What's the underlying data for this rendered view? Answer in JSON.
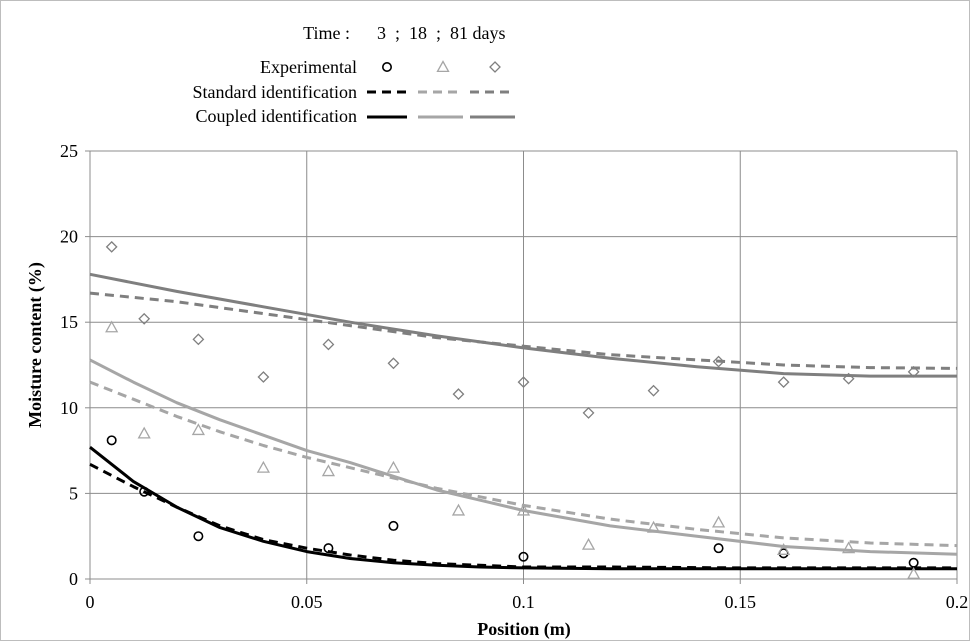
{
  "chart_data": {
    "type": "line",
    "xlabel": "Position (m)",
    "ylabel": "Moisture content (%)",
    "xlim": [
      0,
      0.2
    ],
    "ylim": [
      0,
      25
    ],
    "x_ticks": [
      "0",
      "0.05",
      "0.1",
      "0.15",
      "0.2"
    ],
    "y_ticks": [
      "0",
      "5",
      "10",
      "15",
      "20",
      "25"
    ],
    "grid": true,
    "legend": {
      "placement": "top-center",
      "time_label": "Time :",
      "time_values": "3  ;  18  ;  81 days",
      "rows": [
        "Experimental",
        "Standard identification",
        "Coupled identification"
      ]
    },
    "colors": {
      "day3": "#000000",
      "day18": "#a6a6a6",
      "day81": "#7f7f7f"
    },
    "series": [
      {
        "time": "3 days",
        "group": "experimental",
        "color": "#000000",
        "x": [
          0.005,
          0.0125,
          0.025,
          0.055,
          0.07,
          0.1,
          0.145,
          0.16,
          0.19
        ],
        "values": [
          8.1,
          5.1,
          2.5,
          1.8,
          3.1,
          1.3,
          1.8,
          1.5,
          0.95
        ]
      },
      {
        "time": "18 days",
        "group": "experimental",
        "color": "#a6a6a6",
        "x": [
          0.005,
          0.0125,
          0.025,
          0.04,
          0.055,
          0.07,
          0.085,
          0.1,
          0.115,
          0.13,
          0.145,
          0.16,
          0.175,
          0.19
        ],
        "values": [
          14.7,
          8.5,
          8.7,
          6.5,
          6.3,
          6.5,
          4.0,
          4.0,
          2.0,
          3.0,
          3.3,
          1.7,
          1.8,
          0.3
        ]
      },
      {
        "time": "81 days",
        "group": "experimental",
        "color": "#7f7f7f",
        "x": [
          0.005,
          0.0125,
          0.025,
          0.04,
          0.055,
          0.07,
          0.085,
          0.1,
          0.115,
          0.13,
          0.145,
          0.16,
          0.175,
          0.19
        ],
        "values": [
          19.4,
          15.2,
          14.0,
          11.8,
          13.7,
          12.6,
          10.8,
          11.5,
          9.7,
          11.0,
          12.7,
          11.5,
          11.7,
          12.1
        ]
      },
      {
        "time": "3 days",
        "group": "standard",
        "color": "#000000",
        "x": [
          0,
          0.01,
          0.02,
          0.03,
          0.04,
          0.05,
          0.06,
          0.07,
          0.08,
          0.09,
          0.1,
          0.12,
          0.15,
          0.2
        ],
        "values": [
          6.7,
          5.4,
          4.2,
          3.1,
          2.3,
          1.8,
          1.4,
          1.1,
          0.9,
          0.8,
          0.7,
          0.7,
          0.65,
          0.65
        ]
      },
      {
        "time": "18 days",
        "group": "standard",
        "color": "#a6a6a6",
        "x": [
          0,
          0.01,
          0.02,
          0.03,
          0.04,
          0.05,
          0.06,
          0.07,
          0.08,
          0.09,
          0.1,
          0.12,
          0.14,
          0.16,
          0.18,
          0.2
        ],
        "values": [
          11.5,
          10.5,
          9.5,
          8.6,
          7.8,
          7.1,
          6.5,
          5.9,
          5.3,
          4.8,
          4.3,
          3.5,
          2.9,
          2.4,
          2.1,
          1.95
        ]
      },
      {
        "time": "81 days",
        "group": "standard",
        "color": "#7f7f7f",
        "x": [
          0,
          0.02,
          0.04,
          0.06,
          0.08,
          0.1,
          0.12,
          0.14,
          0.16,
          0.18,
          0.2
        ],
        "values": [
          16.7,
          16.2,
          15.5,
          14.8,
          14.1,
          13.6,
          13.1,
          12.8,
          12.5,
          12.35,
          12.3
        ]
      },
      {
        "time": "3 days",
        "group": "coupled",
        "color": "#000000",
        "x": [
          0,
          0.01,
          0.02,
          0.03,
          0.04,
          0.05,
          0.06,
          0.07,
          0.08,
          0.09,
          0.1,
          0.12,
          0.15,
          0.2
        ],
        "values": [
          7.7,
          5.7,
          4.2,
          3.0,
          2.2,
          1.6,
          1.2,
          0.95,
          0.8,
          0.7,
          0.65,
          0.6,
          0.6,
          0.6
        ]
      },
      {
        "time": "18 days",
        "group": "coupled",
        "color": "#a6a6a6",
        "x": [
          0,
          0.01,
          0.02,
          0.03,
          0.04,
          0.05,
          0.06,
          0.07,
          0.08,
          0.09,
          0.1,
          0.12,
          0.14,
          0.16,
          0.18,
          0.2
        ],
        "values": [
          12.8,
          11.5,
          10.3,
          9.3,
          8.4,
          7.5,
          6.8,
          6.0,
          5.2,
          4.6,
          4.0,
          3.1,
          2.5,
          1.9,
          1.6,
          1.45
        ]
      },
      {
        "time": "81 days",
        "group": "coupled",
        "color": "#7f7f7f",
        "x": [
          0,
          0.02,
          0.04,
          0.06,
          0.08,
          0.1,
          0.12,
          0.14,
          0.16,
          0.18,
          0.2
        ],
        "values": [
          17.8,
          16.8,
          15.9,
          15.0,
          14.2,
          13.5,
          12.9,
          12.4,
          12.0,
          11.85,
          11.85
        ]
      }
    ]
  }
}
